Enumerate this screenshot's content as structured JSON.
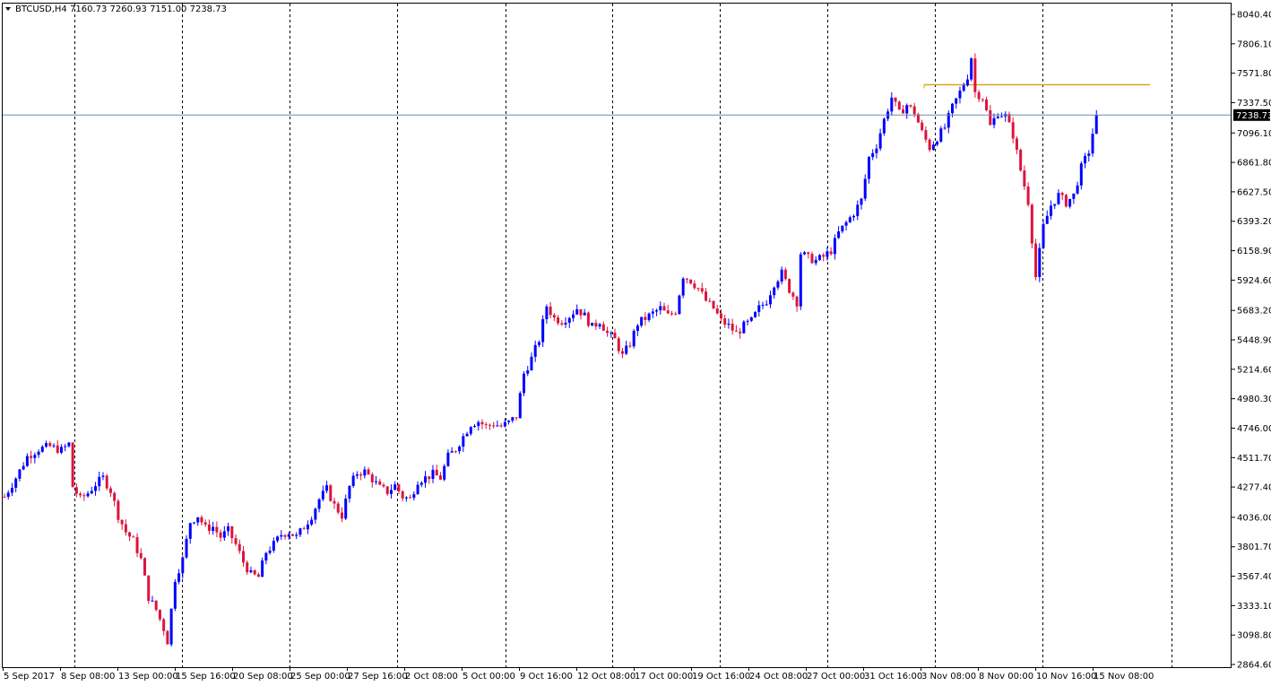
{
  "header": {
    "symbol": "BTCUSD,H4",
    "ohlc": "7160.73 7260.93 7151.00 7238.73"
  },
  "chart_data": {
    "type": "candlestick",
    "symbol": "BTCUSD",
    "timeframe": "H4",
    "ylim": [
      2864.6,
      8040.4
    ],
    "current_price": 7238.73,
    "current_price_label": "7238.73",
    "price_ticks": [
      "8040.40",
      "7806.10",
      "7571.80",
      "7337.50",
      "7096.10",
      "6861.80",
      "6627.50",
      "6393.20",
      "6158.90",
      "5924.60",
      "5683.20",
      "5448.90",
      "5214.60",
      "4980.30",
      "4746.00",
      "4511.70",
      "4277.40",
      "4036.00",
      "3801.70",
      "3567.40",
      "3333.10",
      "3098.80",
      "2864.60"
    ],
    "time_labels": [
      "5 Sep 2017",
      "8 Sep 08:00",
      "13 Sep 00:00",
      "15 Sep 16:00",
      "20 Sep 08:00",
      "25 Sep 00:00",
      "27 Sep 16:00",
      "2 Oct 08:00",
      "5 Oct 00:00",
      "9 Oct 16:00",
      "12 Oct 08:00",
      "17 Oct 00:00",
      "19 Oct 16:00",
      "24 Oct 08:00",
      "27 Oct 00:00",
      "31 Oct 16:00",
      "3 Nov 08:00",
      "8 Nov 00:00",
      "10 Nov 16:00",
      "15 Nov 08:00"
    ],
    "horizontal_line": {
      "price": 7480.0,
      "color": "#daa520"
    },
    "colors": {
      "bull": "#0000ff",
      "bear": "#dc143c",
      "grid": "#000000",
      "price_line": "#6b8bb0",
      "price_tag": "#000000"
    },
    "grid": true,
    "price_path": [
      [
        0,
        4200
      ],
      [
        3,
        4350
      ],
      [
        6,
        4520
      ],
      [
        9,
        4580
      ],
      [
        12,
        4600
      ],
      [
        15,
        4570
      ],
      [
        17,
        4620
      ],
      [
        18,
        4280
      ],
      [
        20,
        4180
      ],
      [
        22,
        4230
      ],
      [
        24,
        4300
      ],
      [
        26,
        4350
      ],
      [
        28,
        4250
      ],
      [
        30,
        4050
      ],
      [
        32,
        3920
      ],
      [
        34,
        3850
      ],
      [
        36,
        3700
      ],
      [
        38,
        3400
      ],
      [
        40,
        3300
      ],
      [
        42,
        3150
      ],
      [
        43,
        3050
      ],
      [
        45,
        3550
      ],
      [
        47,
        3700
      ],
      [
        49,
        4000
      ],
      [
        51,
        4050
      ],
      [
        53,
        3950
      ],
      [
        55,
        3960
      ],
      [
        57,
        3880
      ],
      [
        59,
        3930
      ],
      [
        61,
        3820
      ],
      [
        63,
        3680
      ],
      [
        65,
        3580
      ],
      [
        67,
        3560
      ],
      [
        69,
        3760
      ],
      [
        71,
        3820
      ],
      [
        73,
        3900
      ],
      [
        75,
        3920
      ],
      [
        77,
        3880
      ],
      [
        79,
        3960
      ],
      [
        81,
        4050
      ],
      [
        83,
        4180
      ],
      [
        85,
        4260
      ],
      [
        87,
        4130
      ],
      [
        89,
        4050
      ],
      [
        91,
        4280
      ],
      [
        93,
        4390
      ],
      [
        95,
        4400
      ],
      [
        97,
        4340
      ],
      [
        99,
        4270
      ],
      [
        101,
        4240
      ],
      [
        103,
        4290
      ],
      [
        105,
        4200
      ],
      [
        107,
        4180
      ],
      [
        109,
        4330
      ],
      [
        111,
        4350
      ],
      [
        113,
        4380
      ],
      [
        115,
        4350
      ],
      [
        117,
        4520
      ],
      [
        119,
        4580
      ],
      [
        121,
        4680
      ],
      [
        123,
        4780
      ],
      [
        125,
        4800
      ],
      [
        127,
        4760
      ],
      [
        129,
        4780
      ],
      [
        131,
        4760
      ],
      [
        133,
        4790
      ],
      [
        135,
        4840
      ],
      [
        137,
        5180
      ],
      [
        139,
        5300
      ],
      [
        141,
        5450
      ],
      [
        143,
        5720
      ],
      [
        145,
        5620
      ],
      [
        147,
        5600
      ],
      [
        149,
        5640
      ],
      [
        151,
        5700
      ],
      [
        153,
        5640
      ],
      [
        155,
        5550
      ],
      [
        157,
        5600
      ],
      [
        159,
        5500
      ],
      [
        161,
        5450
      ],
      [
        163,
        5320
      ],
      [
        165,
        5420
      ],
      [
        167,
        5580
      ],
      [
        169,
        5620
      ],
      [
        171,
        5660
      ],
      [
        173,
        5700
      ],
      [
        175,
        5640
      ],
      [
        177,
        5680
      ],
      [
        179,
        5960
      ],
      [
        181,
        5920
      ],
      [
        183,
        5860
      ],
      [
        185,
        5760
      ],
      [
        187,
        5700
      ],
      [
        189,
        5600
      ],
      [
        191,
        5560
      ],
      [
        193,
        5500
      ],
      [
        195,
        5560
      ],
      [
        197,
        5600
      ],
      [
        199,
        5700
      ],
      [
        201,
        5760
      ],
      [
        203,
        5900
      ],
      [
        205,
        5980
      ],
      [
        207,
        5850
      ],
      [
        209,
        5750
      ],
      [
        210,
        6140
      ],
      [
        212,
        6100
      ],
      [
        214,
        6080
      ],
      [
        216,
        6110
      ],
      [
        218,
        6160
      ],
      [
        220,
        6300
      ],
      [
        222,
        6380
      ],
      [
        224,
        6460
      ],
      [
        226,
        6560
      ],
      [
        228,
        6900
      ],
      [
        230,
        7000
      ],
      [
        232,
        7200
      ],
      [
        234,
        7380
      ],
      [
        236,
        7250
      ],
      [
        238,
        7320
      ],
      [
        240,
        7260
      ],
      [
        242,
        7100
      ],
      [
        244,
        6980
      ],
      [
        246,
        7060
      ],
      [
        248,
        7140
      ],
      [
        250,
        7300
      ],
      [
        252,
        7420
      ],
      [
        254,
        7550
      ],
      [
        255,
        7700
      ],
      [
        256,
        7420
      ],
      [
        258,
        7380
      ],
      [
        260,
        7150
      ],
      [
        262,
        7260
      ],
      [
        264,
        7230
      ],
      [
        266,
        7080
      ],
      [
        268,
        6800
      ],
      [
        270,
        6550
      ],
      [
        272,
        5950
      ],
      [
        274,
        6350
      ],
      [
        276,
        6520
      ],
      [
        278,
        6600
      ],
      [
        280,
        6540
      ],
      [
        282,
        6600
      ],
      [
        284,
        6820
      ],
      [
        286,
        6950
      ],
      [
        288,
        7238.73
      ]
    ]
  }
}
